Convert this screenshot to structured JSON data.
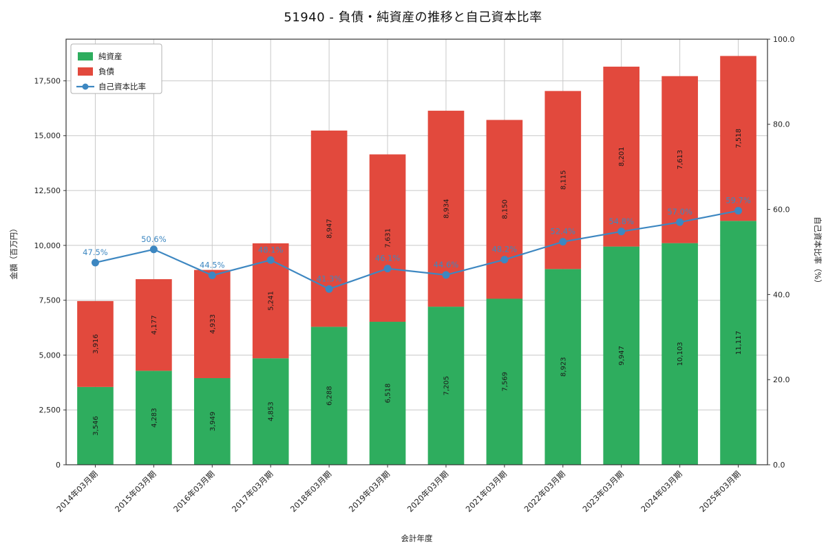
{
  "title": "51940 - 負債・純資産の推移と自己資本比率",
  "chart_data": {
    "type": "bar",
    "stacked": true,
    "title": "51940 - 負債・純資産の推移と自己資本比率",
    "xlabel": "会計年度",
    "ylabel_left": "金額（百万円）",
    "ylabel_right": "自己資本比率（%）",
    "categories": [
      "2014年03月期",
      "2015年03月期",
      "2016年03月期",
      "2017年03月期",
      "2018年03月期",
      "2019年03月期",
      "2020年03月期",
      "2021年03月期",
      "2022年03月期",
      "2023年03月期",
      "2024年03月期",
      "2025年03月期"
    ],
    "series": [
      {
        "name": "純資産",
        "type": "bar",
        "axis": "left",
        "color": "#2ead5e",
        "values": [
          3546,
          4283,
          3949,
          4853,
          6288,
          6518,
          7205,
          7569,
          8923,
          9947,
          10103,
          11117
        ]
      },
      {
        "name": "負債",
        "type": "bar",
        "axis": "left",
        "color": "#e2493d",
        "values": [
          3916,
          4177,
          4933,
          5241,
          8947,
          7631,
          8934,
          8150,
          8115,
          8201,
          7613,
          7518
        ]
      },
      {
        "name": "自己資本比率",
        "type": "line",
        "axis": "right",
        "color": "#3d87c1",
        "values": [
          47.5,
          50.6,
          44.5,
          48.1,
          41.3,
          46.1,
          44.6,
          48.2,
          52.4,
          54.8,
          57.0,
          59.7
        ]
      }
    ],
    "yticks_left": [
      0,
      2500,
      5000,
      7500,
      10000,
      12500,
      15000,
      17500
    ],
    "ylim_left": [
      0,
      19400
    ],
    "yticks_right": [
      0,
      20,
      40,
      60,
      80,
      100
    ],
    "ylim_right": [
      0,
      100
    ],
    "legend": [
      "純資産",
      "負債",
      "自己資本比率"
    ],
    "legend_position": "upper-left",
    "grid": true,
    "colors": {
      "grid": "#c8c8c8",
      "spine": "#333333",
      "bar_label": "#1a1a1a",
      "ratio_label": "#3d87c1",
      "legend_border": "#b0b0b0"
    }
  }
}
